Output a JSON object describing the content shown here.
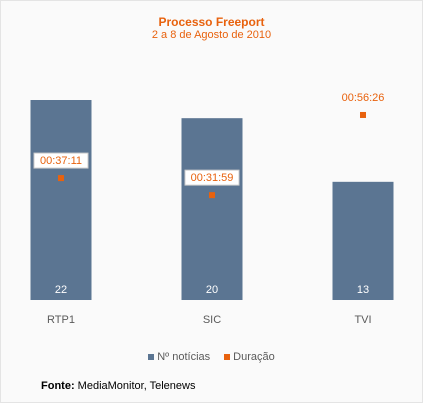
{
  "chart_data": {
    "type": "bar",
    "title": "Processo Freeport",
    "subtitle": "2 a 8 de Agosto de 2010",
    "categories": [
      "RTP1",
      "SIC",
      "TVI"
    ],
    "series": [
      {
        "name": "Nº notícias",
        "values": [
          22,
          20,
          13
        ],
        "color": "#5b7592"
      },
      {
        "name": "Duração",
        "values": [
          "00:37:11",
          "00:31:59",
          "00:56:26"
        ],
        "color": "#e8620e"
      }
    ],
    "legend": "bottom",
    "grid": false
  },
  "source": {
    "label": "Fonte:",
    "text": "MediaMonitor, Telenews"
  }
}
